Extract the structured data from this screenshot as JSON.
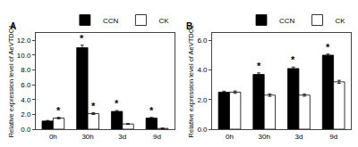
{
  "chart_data": [
    {
      "type": "bar",
      "title": "A",
      "ylabel": "Relative expression level of AeVTDC1",
      "categories": [
        "0h",
        "30h",
        "3d",
        "9d"
      ],
      "series": [
        {
          "name": "CCN",
          "color": "#000000",
          "values": [
            1.1,
            11.0,
            2.4,
            1.5
          ],
          "errors": [
            0.08,
            0.35,
            0.12,
            0.1
          ]
        },
        {
          "name": "CK",
          "color": "#ffffff",
          "values": [
            1.5,
            2.1,
            0.7,
            0.1
          ],
          "errors": [
            0.1,
            0.12,
            0.06,
            0.05
          ]
        }
      ],
      "ylim": [
        0,
        13.0
      ],
      "yticks": [
        {
          "value": 0.0,
          "label": "0.0"
        },
        {
          "value": 2.0,
          "label": "2.0"
        },
        {
          "value": 4.0,
          "label": "4.0"
        },
        {
          "value": 6.0,
          "label": "6.0"
        },
        {
          "value": 8.0,
          "label": "8.0"
        },
        {
          "value": 10.0,
          "label": "10.0"
        },
        {
          "value": 12.0,
          "label": "12.0"
        }
      ],
      "annotations": [
        {
          "text": "*",
          "series": "CCN",
          "category": "30h",
          "y": 11.35
        },
        {
          "text": "*",
          "series": "CCN",
          "category": "3d",
          "y": 2.52
        },
        {
          "text": "*",
          "series": "CCN",
          "category": "9d",
          "y": 1.6
        },
        {
          "text": "*",
          "series": "CK",
          "category": "0h",
          "y": 1.6
        },
        {
          "text": "*",
          "series": "CK",
          "category": "30h",
          "y": 2.22
        }
      ],
      "grid": false,
      "legend": "upper right"
    },
    {
      "type": "bar",
      "title": "B",
      "ylabel": "Relative expression level of AeVTDC2",
      "categories": [
        "0h",
        "30h",
        "3d",
        "9d"
      ],
      "series": [
        {
          "name": "CCN",
          "color": "#000000",
          "values": [
            2.5,
            3.7,
            4.1,
            5.0
          ],
          "errors": [
            0.07,
            0.1,
            0.1,
            0.08
          ]
        },
        {
          "name": "CK",
          "color": "#ffffff",
          "values": [
            2.5,
            2.3,
            2.3,
            3.2
          ],
          "errors": [
            0.08,
            0.08,
            0.07,
            0.1
          ]
        }
      ],
      "ylim": [
        0,
        6.5
      ],
      "yticks": [
        {
          "value": 0.0,
          "label": "0.0"
        },
        {
          "value": 2.0,
          "label": "2.0"
        },
        {
          "value": 4.0,
          "label": "4.0"
        },
        {
          "value": 6.0,
          "label": "6.0"
        }
      ],
      "annotations": [
        {
          "text": "*",
          "series": "CCN",
          "category": "30h",
          "y": 3.8
        },
        {
          "text": "*",
          "series": "CCN",
          "category": "3d",
          "y": 4.2
        },
        {
          "text": "*",
          "series": "CCN",
          "category": "9d",
          "y": 5.08
        }
      ],
      "grid": false,
      "legend": "upper right"
    }
  ]
}
